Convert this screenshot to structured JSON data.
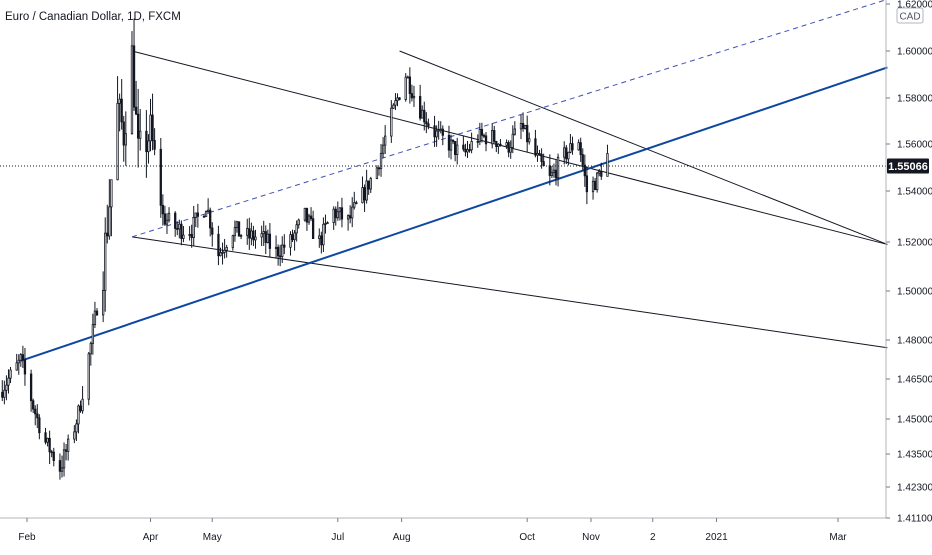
{
  "header": {
    "title": "Euro / Canadian Dollar, 1D, FXCM",
    "currency_badge": "CAD"
  },
  "chart_data": {
    "type": "candlestick",
    "symbol": "Euro / Canadian Dollar",
    "interval": "1D",
    "source": "FXCM",
    "currency": "CAD",
    "last_price": 1.55066,
    "last_price_label": "1.55066",
    "y_ticks": [
      {
        "label": "1.62000",
        "value": 1.62
      },
      {
        "label": "1.60000",
        "value": 1.6
      },
      {
        "label": "1.58000",
        "value": 1.58
      },
      {
        "label": "1.56000",
        "value": 1.56
      },
      {
        "label": "1.54000",
        "value": 1.54
      },
      {
        "label": "1.52000",
        "value": 1.52
      },
      {
        "label": "1.50000",
        "value": 1.5
      },
      {
        "label": "1.48000",
        "value": 1.48
      },
      {
        "label": "1.46500",
        "value": 1.465
      },
      {
        "label": "1.45000",
        "value": 1.45
      },
      {
        "label": "1.43500",
        "value": 1.435
      },
      {
        "label": "1.42300",
        "value": 1.423
      },
      {
        "label": "1.41100",
        "value": 1.411
      }
    ],
    "x_ticks": [
      {
        "label": "Feb",
        "date": "2020-02-01"
      },
      {
        "label": "Apr",
        "date": "2020-04-01"
      },
      {
        "label": "May",
        "date": "2020-05-01"
      },
      {
        "label": "Jul",
        "date": "2020-07-01"
      },
      {
        "label": "Aug",
        "date": "2020-08-01"
      },
      {
        "label": "Oct",
        "date": "2020-10-01"
      },
      {
        "label": "Nov",
        "date": "2020-11-01"
      },
      {
        "label": "2",
        "date": "2020-12-01"
      },
      {
        "label": "2021",
        "date": "2021-01-01"
      },
      {
        "label": "Mar",
        "date": "2021-03-01"
      }
    ],
    "anchors": [
      [
        "2020-01-20",
        1.462
      ],
      [
        "2020-01-24",
        1.466
      ],
      [
        "2020-01-29",
        1.472
      ],
      [
        "2020-02-04",
        1.455
      ],
      [
        "2020-02-10",
        1.44
      ],
      [
        "2020-02-17",
        1.43
      ],
      [
        "2020-02-21",
        1.438
      ],
      [
        "2020-02-26",
        1.452
      ],
      [
        "2020-03-03",
        1.478
      ],
      [
        "2020-03-09",
        1.51
      ],
      [
        "2020-03-13",
        1.545
      ],
      [
        "2020-03-16",
        1.575
      ],
      [
        "2020-03-19",
        1.565
      ],
      [
        "2020-03-23",
        1.598
      ],
      [
        "2020-03-26",
        1.555
      ],
      [
        "2020-04-01",
        1.565
      ],
      [
        "2020-04-07",
        1.53
      ],
      [
        "2020-04-14",
        1.525
      ],
      [
        "2020-04-21",
        1.525
      ],
      [
        "2020-04-28",
        1.535
      ],
      [
        "2020-05-04",
        1.515
      ],
      [
        "2020-05-11",
        1.525
      ],
      [
        "2020-05-18",
        1.522
      ],
      [
        "2020-05-25",
        1.522
      ],
      [
        "2020-06-01",
        1.516
      ],
      [
        "2020-06-08",
        1.52
      ],
      [
        "2020-06-15",
        1.53
      ],
      [
        "2020-06-22",
        1.52
      ],
      [
        "2020-06-29",
        1.532
      ],
      [
        "2020-07-06",
        1.528
      ],
      [
        "2020-07-13",
        1.538
      ],
      [
        "2020-07-20",
        1.55
      ],
      [
        "2020-07-27",
        1.572
      ],
      [
        "2020-08-03",
        1.59
      ],
      [
        "2020-08-10",
        1.575
      ],
      [
        "2020-08-17",
        1.565
      ],
      [
        "2020-08-24",
        1.56
      ],
      [
        "2020-08-31",
        1.555
      ],
      [
        "2020-09-07",
        1.563
      ],
      [
        "2020-09-14",
        1.563
      ],
      [
        "2020-09-21",
        1.558
      ],
      [
        "2020-09-28",
        1.568
      ],
      [
        "2020-10-05",
        1.555
      ],
      [
        "2020-10-12",
        1.545
      ],
      [
        "2020-10-19",
        1.555
      ],
      [
        "2020-10-26",
        1.562
      ],
      [
        "2020-10-30",
        1.54
      ],
      [
        "2020-11-04",
        1.545
      ],
      [
        "2020-11-09",
        1.555
      ]
    ],
    "annotations": [
      {
        "kind": "channel-upper",
        "from": [
          "2020-03-23",
          1.6
        ],
        "to": [
          "2021-03-25",
          1.519
        ],
        "color": "#131722"
      },
      {
        "kind": "channel-lower",
        "from": [
          "2020-03-23",
          1.522
        ],
        "to": [
          "2021-03-25",
          1.477
        ],
        "color": "#131722"
      },
      {
        "kind": "channel-upper",
        "from": [
          "2020-07-31",
          1.6
        ],
        "to": [
          "2021-03-25",
          1.519
        ],
        "color": "#131722"
      },
      {
        "kind": "trendline",
        "from": [
          "2020-01-29",
          1.472
        ],
        "to": [
          "2021-03-25",
          1.593
        ],
        "color": "#0d47a1"
      },
      {
        "kind": "trendline-dashed",
        "from": [
          "2020-03-23",
          1.522
        ],
        "to": [
          "2021-03-25",
          1.622
        ],
        "color": "#3f51b5"
      }
    ],
    "colors": {
      "candle_up": "#ffffff",
      "candle_down": "#131722",
      "wick": "#131722",
      "trendline": "#0d47a1",
      "dashed_trendline": "#3f51b5",
      "price_line": "#131722",
      "price_tag_bg": "#131722",
      "price_tag_text": "#ffffff"
    },
    "grid": false,
    "legend": "none"
  }
}
